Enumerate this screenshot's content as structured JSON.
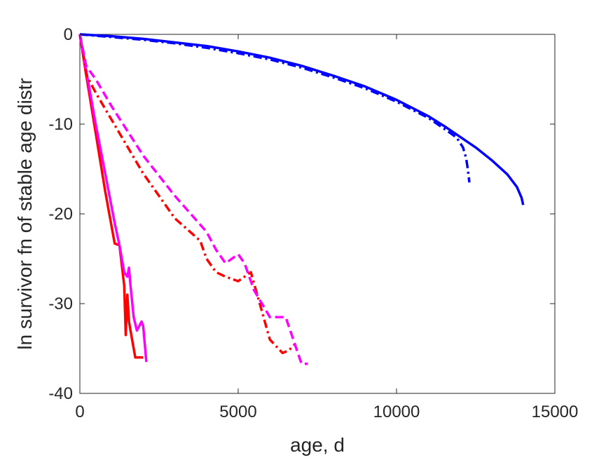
{
  "chart_data": {
    "type": "line",
    "title": "",
    "xlabel": "age, d",
    "ylabel": "ln survivor fn of stable age distr",
    "xlim": [
      0,
      15000
    ],
    "ylim": [
      -40,
      0
    ],
    "grid": false,
    "legend": "none",
    "x_ticks": [
      {
        "value": 0,
        "label": "0"
      },
      {
        "value": 5000,
        "label": "5000"
      },
      {
        "value": 10000,
        "label": "10000"
      },
      {
        "value": 15000,
        "label": "15000"
      }
    ],
    "y_ticks": [
      {
        "value": 0,
        "label": "0"
      },
      {
        "value": -10,
        "label": "-10"
      },
      {
        "value": -20,
        "label": "-20"
      },
      {
        "value": -30,
        "label": "-30"
      },
      {
        "value": -40,
        "label": "-40"
      }
    ],
    "series": [
      {
        "color": "#0000ff",
        "style": "solid",
        "x": [
          0,
          1000,
          2000,
          3000,
          4000,
          5000,
          6000,
          7000,
          8000,
          9000,
          10000,
          11000,
          11500,
          12000,
          12500,
          13000,
          13500,
          13800,
          13950,
          14000
        ],
        "y": [
          0,
          -0.2,
          -0.5,
          -0.9,
          -1.3,
          -1.9,
          -2.6,
          -3.5,
          -4.6,
          -5.8,
          -7.3,
          -9.1,
          -10.2,
          -11.4,
          -12.6,
          -14.0,
          -15.6,
          -17.0,
          -18.2,
          -19.0
        ]
      },
      {
        "color": "#0000ff",
        "style": "dashdot",
        "x": [
          0,
          1000,
          2000,
          3000,
          4000,
          5000,
          6000,
          7000,
          8000,
          9000,
          10000,
          11000,
          11500,
          11900,
          12100,
          12200,
          12250,
          12300
        ],
        "y": [
          0,
          -0.3,
          -0.6,
          -1.0,
          -1.5,
          -2.1,
          -2.8,
          -3.7,
          -4.8,
          -6.0,
          -7.5,
          -9.3,
          -10.5,
          -11.5,
          -12.6,
          -13.8,
          -15.0,
          -16.5
        ]
      },
      {
        "color": "#ff0000",
        "style": "solid",
        "x": [
          0,
          200,
          500,
          800,
          1100,
          1250,
          1300,
          1400,
          1450,
          1500,
          1550,
          1600,
          1750,
          1900,
          2000
        ],
        "y": [
          0,
          -4.5,
          -11,
          -17.5,
          -23.3,
          -23.5,
          -25,
          -28,
          -33.5,
          -29,
          -32,
          -33,
          -36,
          -36,
          -36
        ]
      },
      {
        "color": "#ff00ff",
        "style": "solid",
        "x": [
          0,
          200,
          500,
          800,
          1100,
          1250,
          1400,
          1500,
          1550,
          1600,
          1700,
          1800,
          1950,
          2000,
          2100
        ],
        "y": [
          0,
          -4,
          -10,
          -15.5,
          -21,
          -23.5,
          -26.5,
          -27,
          -26,
          -28,
          -31.5,
          -33,
          -32,
          -32.5,
          -36.5
        ]
      },
      {
        "color": "#ff0000",
        "style": "dashdot",
        "x": [
          0,
          200,
          500,
          1000,
          2000,
          3000,
          3800,
          4000,
          4300,
          4600,
          5000,
          5400,
          6000,
          6400,
          6600,
          6800
        ],
        "y": [
          0,
          -4.5,
          -6.5,
          -9.5,
          -15.5,
          -20.5,
          -23,
          -25,
          -26.5,
          -27,
          -27.5,
          -26.5,
          -34,
          -35.5,
          -35.2,
          -34.5
        ]
      },
      {
        "color": "#ff00ff",
        "style": "dashed",
        "x": [
          0,
          200,
          500,
          1000,
          2000,
          3000,
          4000,
          4300,
          4600,
          5000,
          5200,
          5500,
          6000,
          6500,
          7000,
          7200
        ],
        "y": [
          0,
          -3.5,
          -5,
          -8,
          -13.5,
          -18,
          -22,
          -24,
          -25.5,
          -24.5,
          -25.5,
          -28.5,
          -31.5,
          -31.5,
          -36.7,
          -36.7
        ]
      }
    ]
  }
}
